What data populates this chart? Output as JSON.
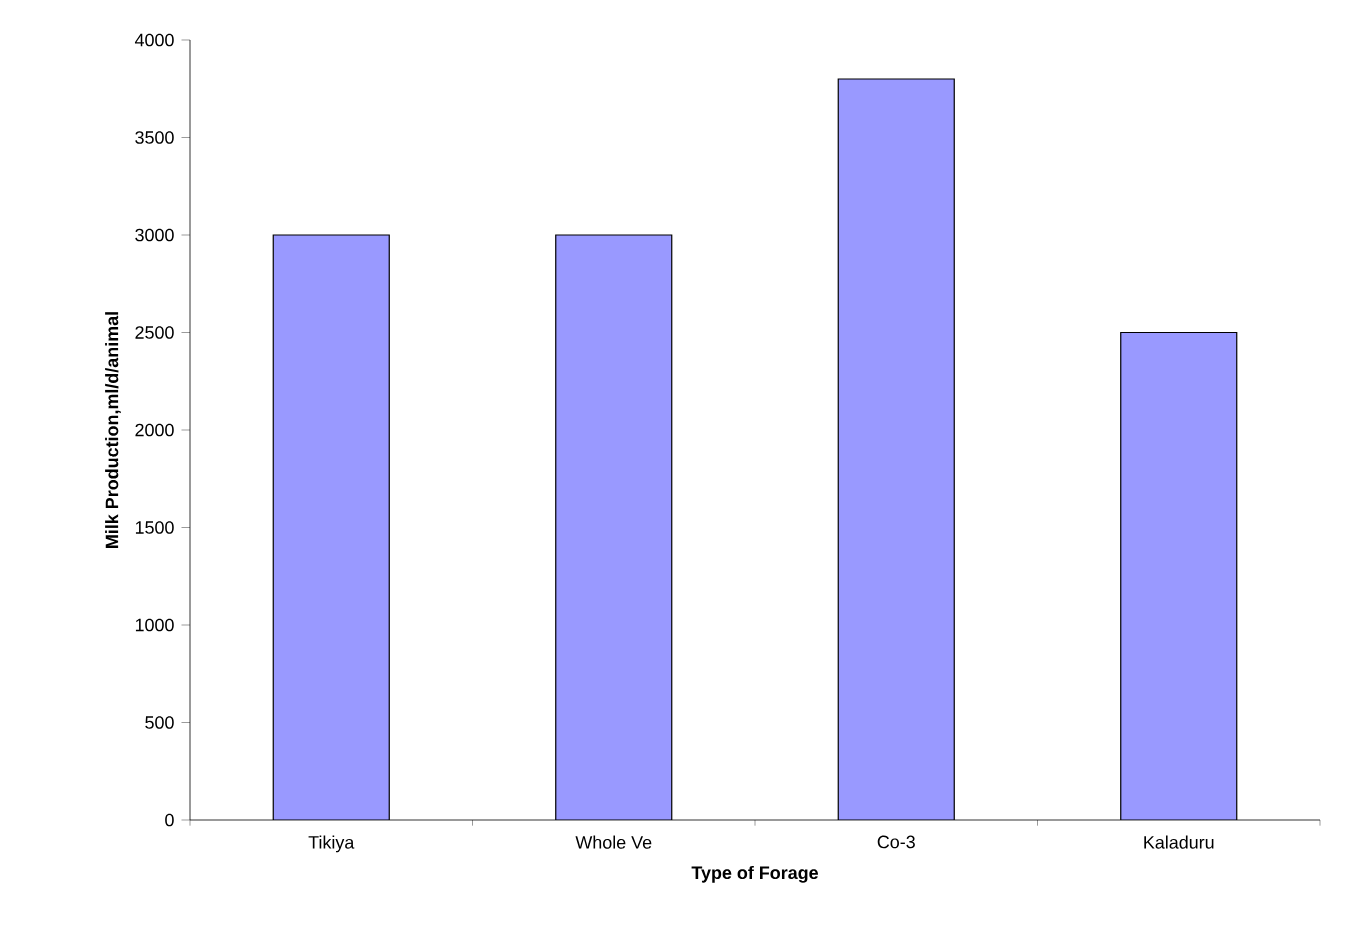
{
  "chart_data": {
    "type": "bar",
    "xlabel": "Type of Forage",
    "ylabel": "Milk Production,ml/d/animal",
    "categories": [
      "Tikiya",
      "Whole Ve",
      "Co-3",
      "Kaladuru"
    ],
    "values": [
      3000,
      3000,
      3800,
      2500
    ],
    "color": "#9999ff",
    "ylim": [
      0,
      4000
    ],
    "yticks": [
      0,
      500,
      1000,
      1500,
      2000,
      2500,
      3000,
      3500,
      4000
    ],
    "grid": false
  }
}
